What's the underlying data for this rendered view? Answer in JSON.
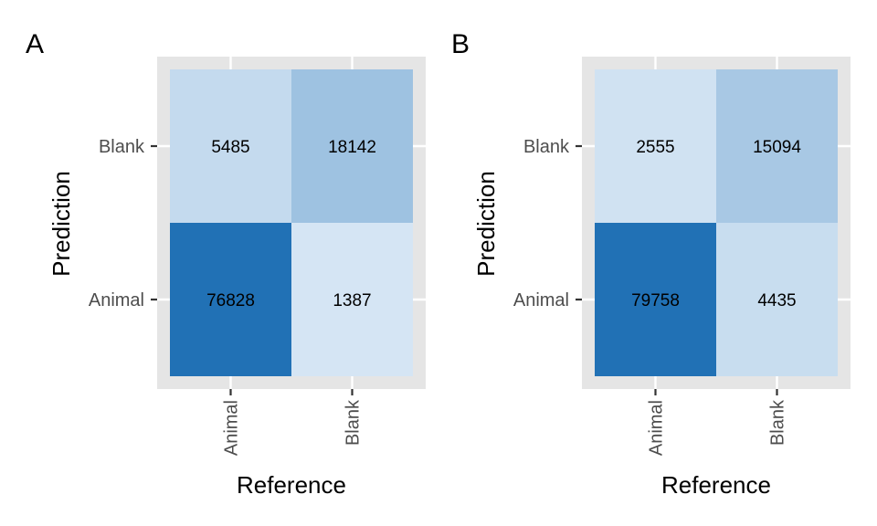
{
  "chart_data": [
    {
      "type": "heatmap",
      "panel_label": "A",
      "xlabel": "Reference",
      "ylabel": "Prediction",
      "x_categories": [
        "Animal",
        "Blank"
      ],
      "y_categories": [
        "Animal",
        "Blank"
      ],
      "cells": [
        {
          "x": "Animal",
          "y": "Blank",
          "value": 5485
        },
        {
          "x": "Blank",
          "y": "Blank",
          "value": 18142
        },
        {
          "x": "Animal",
          "y": "Animal",
          "value": 76828
        },
        {
          "x": "Blank",
          "y": "Animal",
          "value": 1387
        }
      ],
      "fill_scale": {
        "low": "#deebf7",
        "high": "#2171b5"
      },
      "legend": "none"
    },
    {
      "type": "heatmap",
      "panel_label": "B",
      "xlabel": "Reference",
      "ylabel": "Prediction",
      "x_categories": [
        "Animal",
        "Blank"
      ],
      "y_categories": [
        "Animal",
        "Blank"
      ],
      "cells": [
        {
          "x": "Animal",
          "y": "Blank",
          "value": 2555
        },
        {
          "x": "Blank",
          "y": "Blank",
          "value": 15094
        },
        {
          "x": "Animal",
          "y": "Animal",
          "value": 79758
        },
        {
          "x": "Blank",
          "y": "Animal",
          "value": 4435
        }
      ],
      "fill_scale": {
        "low": "#deebf7",
        "high": "#2171b5"
      },
      "legend": "none"
    }
  ],
  "colors": {
    "panel_background": "#e5e5e5",
    "grid": "#ffffff",
    "tick_text": "#4d4d4d",
    "tick_mark": "#333333"
  }
}
